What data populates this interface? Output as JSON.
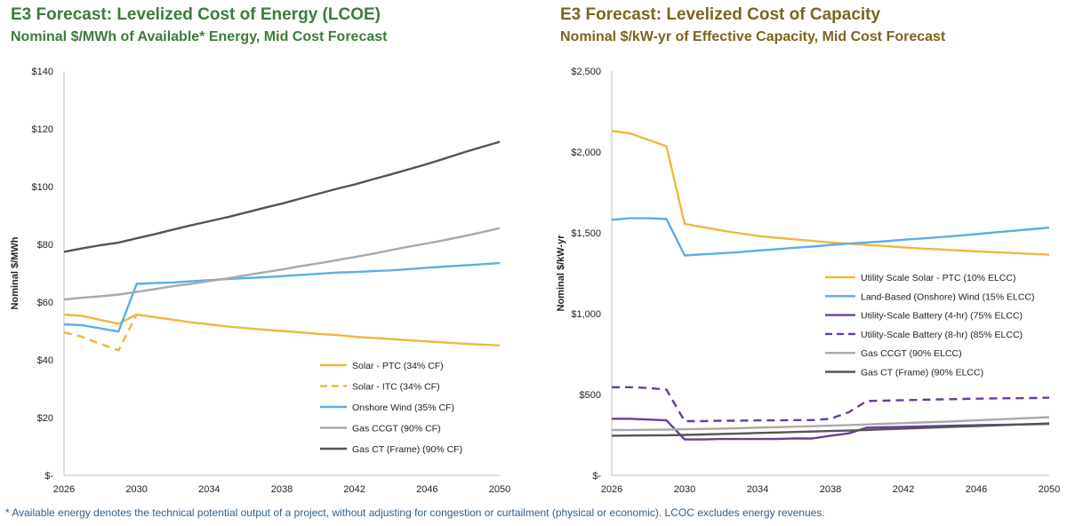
{
  "footnote": "* Available energy denotes the technical potential output of a project, without adjusting for congestion or curtailment (physical or economic). LCOC excludes energy revenues.",
  "chart_data": [
    {
      "type": "line",
      "title": "E3 Forecast: Levelized Cost of Energy (LCOE)",
      "subtitle": "Nominal $/MWh of Available* Energy, Mid Cost Forecast",
      "xlabel": "",
      "ylabel": "Nominal $/MWh",
      "xlim": [
        2026,
        2050
      ],
      "ylim": [
        0,
        140
      ],
      "x_ticks": [
        "2026",
        "2030",
        "2034",
        "2038",
        "2042",
        "2046",
        "2050"
      ],
      "y_ticks": [
        "$-",
        "$20",
        "$40",
        "$60",
        "$80",
        "$100",
        "$120",
        "$140"
      ],
      "y_tick_values": [
        0,
        20,
        40,
        60,
        80,
        100,
        120,
        140
      ],
      "grid": false,
      "legend_position": "bottom-right",
      "x": [
        2026,
        2027,
        2028,
        2029,
        2030,
        2031,
        2032,
        2033,
        2034,
        2035,
        2036,
        2037,
        2038,
        2039,
        2040,
        2041,
        2042,
        2043,
        2044,
        2045,
        2046,
        2047,
        2048,
        2049,
        2050
      ],
      "series": [
        {
          "name": "Solar - PTC (34% CF)",
          "color": "#f2b63d",
          "dash": "solid",
          "x": [
            2026,
            2027,
            2028,
            2029,
            2030,
            2031,
            2032,
            2033,
            2034,
            2035,
            2036,
            2037,
            2038,
            2039,
            2040,
            2041,
            2042,
            2043,
            2044,
            2045,
            2046,
            2047,
            2048,
            2049,
            2050
          ],
          "values": [
            55.7,
            55.2,
            53.8,
            52.5,
            55.7,
            54.8,
            53.9,
            53.0,
            52.3,
            51.5,
            51.0,
            50.5,
            50.0,
            49.5,
            49.0,
            48.6,
            48.0,
            47.6,
            47.2,
            46.8,
            46.4,
            46.0,
            45.6,
            45.3,
            45.0
          ]
        },
        {
          "name": "Solar - ITC (34% CF)",
          "color": "#f2b63d",
          "dash": "dashed",
          "x": [
            2026,
            2027,
            2028,
            2029,
            2030
          ],
          "values": [
            49.5,
            48.0,
            45.5,
            43.3,
            55.7
          ]
        },
        {
          "name": "Onshore Wind (35% CF)",
          "color": "#5aaee6",
          "dash": "solid",
          "x": [
            2026,
            2027,
            2028,
            2029,
            2030,
            2031,
            2032,
            2033,
            2034,
            2035,
            2036,
            2037,
            2038,
            2039,
            2040,
            2041,
            2042,
            2043,
            2044,
            2045,
            2046,
            2047,
            2048,
            2049,
            2050
          ],
          "values": [
            52.3,
            52.0,
            50.9,
            49.8,
            66.3,
            66.6,
            66.8,
            67.2,
            67.6,
            68.0,
            68.3,
            68.6,
            69.0,
            69.4,
            69.8,
            70.2,
            70.4,
            70.7,
            71.0,
            71.4,
            71.9,
            72.3,
            72.7,
            73.1,
            73.5
          ]
        },
        {
          "name": "Gas CCGT (90% CF)",
          "color": "#aaaaaa",
          "dash": "solid",
          "x": [
            2026,
            2027,
            2028,
            2029,
            2030,
            2031,
            2032,
            2033,
            2034,
            2035,
            2036,
            2037,
            2038,
            2039,
            2040,
            2041,
            2042,
            2043,
            2044,
            2045,
            2046,
            2047,
            2048,
            2049,
            2050
          ],
          "values": [
            60.9,
            61.5,
            62.0,
            62.6,
            63.5,
            64.5,
            65.5,
            66.3,
            67.3,
            68.2,
            69.3,
            70.3,
            71.3,
            72.4,
            73.4,
            74.5,
            75.6,
            76.7,
            78.0,
            79.2,
            80.3,
            81.5,
            82.8,
            84.2,
            85.6
          ]
        },
        {
          "name": "Gas CT (Frame) (90% CF)",
          "color": "#555555",
          "dash": "solid",
          "x": [
            2026,
            2027,
            2028,
            2029,
            2030,
            2031,
            2032,
            2033,
            2034,
            2035,
            2036,
            2037,
            2038,
            2039,
            2040,
            2041,
            2042,
            2043,
            2044,
            2045,
            2046,
            2047,
            2048,
            2049,
            2050
          ],
          "values": [
            77.4,
            78.6,
            79.7,
            80.6,
            82.1,
            83.5,
            85.1,
            86.6,
            88.0,
            89.4,
            91.0,
            92.6,
            94.1,
            95.8,
            97.5,
            99.2,
            100.7,
            102.5,
            104.2,
            106.0,
            107.8,
            109.8,
            111.8,
            113.7,
            115.5
          ]
        }
      ]
    },
    {
      "type": "line",
      "title": "E3 Forecast: Levelized Cost of Capacity",
      "subtitle": "Nominal $/kW-yr of Effective Capacity, Mid Cost Forecast",
      "xlabel": "",
      "ylabel": "Nominal $/kW-yr",
      "xlim": [
        2026,
        2050
      ],
      "ylim": [
        0,
        2500
      ],
      "x_ticks": [
        "2026",
        "2030",
        "2034",
        "2038",
        "2042",
        "2046",
        "2050"
      ],
      "y_ticks": [
        "$-",
        "$500",
        "$1,000",
        "$1,500",
        "$2,000",
        "$2,500"
      ],
      "y_tick_values": [
        0,
        500,
        1000,
        1500,
        2000,
        2500
      ],
      "grid": false,
      "legend_position": "right",
      "series": [
        {
          "name": "Utility Scale Solar - PTC (10% ELCC)",
          "color": "#f2b63d",
          "dash": "solid",
          "x": [
            2026,
            2027,
            2028,
            2029,
            2030,
            2031,
            2032,
            2033,
            2034,
            2035,
            2036,
            2037,
            2038,
            2039,
            2040,
            2041,
            2042,
            2043,
            2044,
            2045,
            2046,
            2047,
            2048,
            2049,
            2050
          ],
          "values": [
            2130,
            2115,
            2075,
            2035,
            1555,
            1535,
            1515,
            1497,
            1480,
            1470,
            1460,
            1450,
            1440,
            1433,
            1425,
            1418,
            1410,
            1403,
            1397,
            1391,
            1385,
            1380,
            1375,
            1370,
            1365
          ]
        },
        {
          "name": "Land-Based (Onshore) Wind (15% ELCC)",
          "color": "#5aaee6",
          "dash": "solid",
          "x": [
            2026,
            2027,
            2028,
            2029,
            2030,
            2031,
            2032,
            2033,
            2034,
            2035,
            2036,
            2037,
            2038,
            2039,
            2040,
            2041,
            2042,
            2043,
            2044,
            2045,
            2046,
            2047,
            2048,
            2049,
            2050
          ],
          "values": [
            1580,
            1590,
            1590,
            1585,
            1360,
            1367,
            1373,
            1380,
            1390,
            1398,
            1407,
            1415,
            1425,
            1433,
            1440,
            1448,
            1457,
            1465,
            1473,
            1482,
            1492,
            1502,
            1512,
            1522,
            1532
          ]
        },
        {
          "name": "Utility-Scale Battery (4-hr) (75% ELCC)",
          "color": "#6a3d9a",
          "dash": "solid",
          "x": [
            2026,
            2027,
            2028,
            2029,
            2030,
            2031,
            2032,
            2033,
            2034,
            2035,
            2036,
            2037,
            2038,
            2039,
            2040,
            2041,
            2042,
            2043,
            2044,
            2045,
            2046,
            2047,
            2048,
            2049,
            2050
          ],
          "values": [
            350,
            350,
            345,
            340,
            222,
            222,
            225,
            225,
            225,
            225,
            228,
            228,
            245,
            260,
            295,
            298,
            300,
            302,
            305,
            308,
            310,
            312,
            314,
            316,
            318
          ]
        },
        {
          "name": "Utility-Scale Battery (8-hr) (85% ELCC)",
          "color": "#6a3d9a",
          "dash": "dashed",
          "x": [
            2026,
            2027,
            2028,
            2029,
            2030,
            2031,
            2032,
            2033,
            2034,
            2035,
            2036,
            2037,
            2038,
            2039,
            2040,
            2041,
            2042,
            2043,
            2044,
            2045,
            2046,
            2047,
            2048,
            2049,
            2050
          ],
          "values": [
            545,
            545,
            540,
            530,
            335,
            335,
            338,
            338,
            340,
            340,
            342,
            342,
            350,
            390,
            460,
            462,
            465,
            467,
            470,
            472,
            474,
            476,
            477,
            478,
            480
          ]
        },
        {
          "name": "Gas CCGT (90% ELCC)",
          "color": "#aaaaaa",
          "dash": "solid",
          "x": [
            2026,
            2027,
            2028,
            2029,
            2030,
            2031,
            2032,
            2033,
            2034,
            2035,
            2036,
            2037,
            2038,
            2039,
            2040,
            2041,
            2042,
            2043,
            2044,
            2045,
            2046,
            2047,
            2048,
            2049,
            2050
          ],
          "values": [
            280,
            281,
            282,
            283,
            285,
            287,
            289,
            292,
            295,
            298,
            301,
            304,
            307,
            311,
            315,
            319,
            323,
            327,
            331,
            335,
            340,
            345,
            350,
            355,
            360
          ]
        },
        {
          "name": "Gas CT (Frame) (90% ELCC)",
          "color": "#555555",
          "dash": "solid",
          "x": [
            2026,
            2027,
            2028,
            2029,
            2030,
            2031,
            2032,
            2033,
            2034,
            2035,
            2036,
            2037,
            2038,
            2039,
            2040,
            2041,
            2042,
            2043,
            2044,
            2045,
            2046,
            2047,
            2048,
            2049,
            2050
          ],
          "values": [
            245,
            246,
            247,
            248,
            250,
            253,
            256,
            259,
            262,
            265,
            268,
            271,
            274,
            277,
            281,
            285,
            289,
            293,
            297,
            301,
            305,
            309,
            313,
            317,
            321
          ]
        }
      ]
    }
  ]
}
